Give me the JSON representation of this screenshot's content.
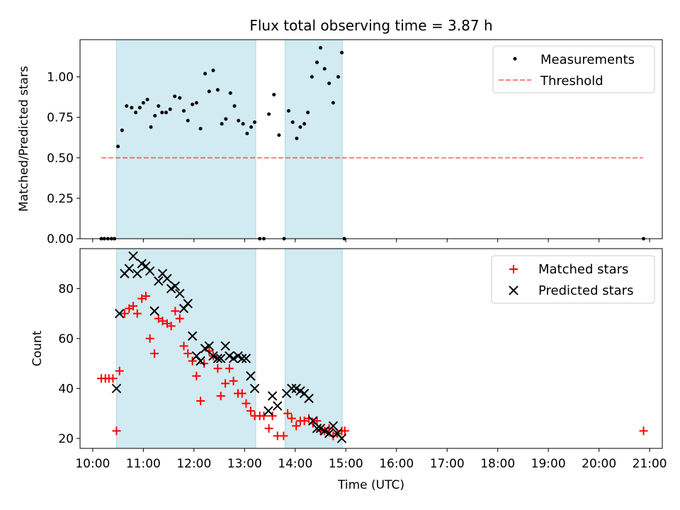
{
  "title": "Flux total observing time = 3.87 h",
  "colors": {
    "band": "#add8e6",
    "threshold": "#ff0000",
    "measurement": "#000000",
    "matched": "#ff0000",
    "predicted": "#000000"
  },
  "x_ticks": [
    "10:00",
    "11:00",
    "12:00",
    "13:00",
    "14:00",
    "15:00",
    "16:00",
    "17:00",
    "18:00",
    "19:00",
    "20:00",
    "21:00"
  ],
  "chart_data": [
    {
      "type": "scatter",
      "ylabel": "Matched/Predicted stars",
      "ylim": [
        0,
        1.23
      ],
      "xlim_hours": [
        9.75,
        21.25
      ],
      "yticks": [
        "0.00",
        "0.25",
        "0.50",
        "0.75",
        "1.00"
      ],
      "legend_position": "upper right",
      "shaded_intervals_hours": [
        [
          10.47,
          13.22
        ],
        [
          13.8,
          14.93
        ]
      ],
      "threshold": {
        "name": "Threshold",
        "y": 0.5,
        "x_range_hours": [
          10.17,
          20.87
        ]
      },
      "series": [
        {
          "name": "Measurements",
          "points": [
            [
              10.17,
              0.0
            ],
            [
              10.23,
              0.0
            ],
            [
              10.3,
              0.0
            ],
            [
              10.37,
              0.0
            ],
            [
              10.43,
              0.0
            ],
            [
              10.5,
              0.57
            ],
            [
              10.58,
              0.67
            ],
            [
              10.67,
              0.82
            ],
            [
              10.77,
              0.81
            ],
            [
              10.85,
              0.78
            ],
            [
              10.93,
              0.81
            ],
            [
              11.0,
              0.84
            ],
            [
              11.08,
              0.86
            ],
            [
              11.15,
              0.69
            ],
            [
              11.23,
              0.76
            ],
            [
              11.3,
              0.82
            ],
            [
              11.37,
              0.78
            ],
            [
              11.45,
              0.78
            ],
            [
              11.53,
              0.8
            ],
            [
              11.62,
              0.88
            ],
            [
              11.72,
              0.87
            ],
            [
              11.8,
              0.79
            ],
            [
              11.88,
              0.73
            ],
            [
              11.97,
              0.83
            ],
            [
              12.05,
              0.84
            ],
            [
              12.13,
              0.68
            ],
            [
              12.22,
              1.02
            ],
            [
              12.3,
              0.91
            ],
            [
              12.38,
              1.04
            ],
            [
              12.47,
              0.92
            ],
            [
              12.55,
              0.71
            ],
            [
              12.63,
              0.74
            ],
            [
              12.72,
              0.9
            ],
            [
              12.8,
              0.82
            ],
            [
              12.88,
              0.73
            ],
            [
              12.97,
              0.71
            ],
            [
              13.05,
              0.65
            ],
            [
              13.13,
              0.69
            ],
            [
              13.2,
              0.72
            ],
            [
              13.3,
              0.0
            ],
            [
              13.38,
              0.0
            ],
            [
              13.48,
              0.77
            ],
            [
              13.58,
              0.89
            ],
            [
              13.68,
              0.64
            ],
            [
              13.78,
              0.0
            ],
            [
              13.87,
              0.79
            ],
            [
              13.95,
              0.72
            ],
            [
              14.03,
              0.62
            ],
            [
              14.1,
              0.69
            ],
            [
              14.18,
              0.71
            ],
            [
              14.25,
              0.78
            ],
            [
              14.33,
              1.0
            ],
            [
              14.43,
              1.09
            ],
            [
              14.5,
              1.18
            ],
            [
              14.58,
              1.05
            ],
            [
              14.67,
              0.96
            ],
            [
              14.75,
              0.84
            ],
            [
              14.85,
              1.0
            ],
            [
              14.92,
              1.15
            ],
            [
              14.97,
              0.0
            ],
            [
              20.88,
              0.0
            ]
          ]
        }
      ]
    },
    {
      "type": "scatter",
      "xlabel": "Time (UTC)",
      "ylabel": "Count",
      "ylim": [
        16,
        96
      ],
      "xlim_hours": [
        9.75,
        21.25
      ],
      "yticks": [
        "20",
        "40",
        "60",
        "80"
      ],
      "legend_position": "upper right",
      "shaded_intervals_hours": [
        [
          10.47,
          13.22
        ],
        [
          13.8,
          14.93
        ]
      ],
      "series": [
        {
          "name": "Matched stars",
          "points": [
            [
              10.17,
              44
            ],
            [
              10.25,
              44
            ],
            [
              10.32,
              44
            ],
            [
              10.4,
              44
            ],
            [
              10.47,
              23
            ],
            [
              10.53,
              47
            ],
            [
              10.63,
              70
            ],
            [
              10.72,
              72
            ],
            [
              10.8,
              73
            ],
            [
              10.88,
              70
            ],
            [
              10.97,
              76
            ],
            [
              11.05,
              77
            ],
            [
              11.13,
              60
            ],
            [
              11.22,
              54
            ],
            [
              11.3,
              68
            ],
            [
              11.38,
              67
            ],
            [
              11.47,
              66
            ],
            [
              11.55,
              65
            ],
            [
              11.63,
              71
            ],
            [
              11.72,
              68
            ],
            [
              11.8,
              57
            ],
            [
              11.88,
              54
            ],
            [
              11.97,
              51
            ],
            [
              12.05,
              45
            ],
            [
              12.13,
              35
            ],
            [
              12.2,
              50
            ],
            [
              12.3,
              55
            ],
            [
              12.38,
              53
            ],
            [
              12.47,
              48
            ],
            [
              12.53,
              37
            ],
            [
              12.62,
              42
            ],
            [
              12.7,
              48
            ],
            [
              12.78,
              43
            ],
            [
              12.87,
              38
            ],
            [
              12.95,
              38
            ],
            [
              13.03,
              34
            ],
            [
              13.12,
              31
            ],
            [
              13.2,
              29
            ],
            [
              13.3,
              29
            ],
            [
              13.38,
              29
            ],
            [
              13.48,
              24
            ],
            [
              13.55,
              29
            ],
            [
              13.65,
              21
            ],
            [
              13.77,
              21
            ],
            [
              13.85,
              30
            ],
            [
              13.93,
              28
            ],
            [
              14.02,
              25
            ],
            [
              14.1,
              27
            ],
            [
              14.18,
              27
            ],
            [
              14.27,
              28
            ],
            [
              14.35,
              26
            ],
            [
              14.43,
              27
            ],
            [
              14.5,
              23
            ],
            [
              14.58,
              23
            ],
            [
              14.67,
              24
            ],
            [
              14.75,
              21
            ],
            [
              14.83,
              22
            ],
            [
              14.92,
              23
            ],
            [
              14.98,
              23
            ],
            [
              20.88,
              23
            ]
          ]
        },
        {
          "name": "Predicted stars",
          "points": [
            [
              10.47,
              40
            ],
            [
              10.53,
              70
            ],
            [
              10.63,
              86
            ],
            [
              10.72,
              88
            ],
            [
              10.8,
              93
            ],
            [
              10.88,
              86
            ],
            [
              10.97,
              90
            ],
            [
              11.05,
              89
            ],
            [
              11.13,
              87
            ],
            [
              11.22,
              71
            ],
            [
              11.3,
              83
            ],
            [
              11.38,
              86
            ],
            [
              11.47,
              84
            ],
            [
              11.55,
              80
            ],
            [
              11.63,
              81
            ],
            [
              11.72,
              78
            ],
            [
              11.8,
              72
            ],
            [
              11.88,
              74
            ],
            [
              11.97,
              61
            ],
            [
              12.05,
              53
            ],
            [
              12.13,
              51
            ],
            [
              12.22,
              56
            ],
            [
              12.3,
              57
            ],
            [
              12.38,
              53
            ],
            [
              12.47,
              52
            ],
            [
              12.53,
              52
            ],
            [
              12.62,
              57
            ],
            [
              12.7,
              53
            ],
            [
              12.78,
              52
            ],
            [
              12.87,
              53
            ],
            [
              12.95,
              52
            ],
            [
              13.03,
              52
            ],
            [
              13.12,
              45
            ],
            [
              13.2,
              40
            ],
            [
              13.47,
              31
            ],
            [
              13.55,
              37
            ],
            [
              13.65,
              33
            ],
            [
              13.83,
              38
            ],
            [
              13.93,
              40
            ],
            [
              14.02,
              40
            ],
            [
              14.1,
              39
            ],
            [
              14.18,
              38
            ],
            [
              14.27,
              36
            ],
            [
              14.35,
              27
            ],
            [
              14.43,
              24
            ],
            [
              14.5,
              24
            ],
            [
              14.58,
              23
            ],
            [
              14.67,
              22
            ],
            [
              14.75,
              25
            ],
            [
              14.83,
              22
            ],
            [
              14.92,
              20
            ]
          ]
        }
      ]
    }
  ]
}
